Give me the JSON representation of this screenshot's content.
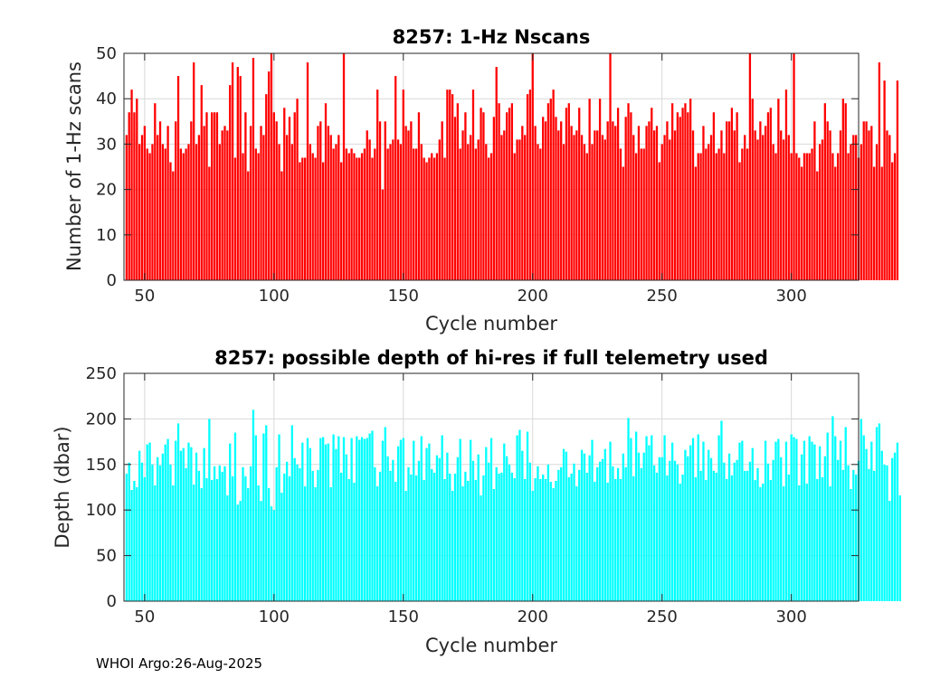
{
  "chart_data": [
    {
      "type": "bar",
      "title": "8257: 1-Hz Nscans",
      "xlabel": "Cycle number",
      "ylabel": "Number of 1-Hz scans",
      "xlim": [
        42,
        326
      ],
      "ylim": [
        0,
        50
      ],
      "xticks": [
        50,
        100,
        150,
        200,
        250,
        300
      ],
      "yticks": [
        0,
        10,
        20,
        30,
        40,
        50
      ],
      "grid": true,
      "bar_color": "#ff0000",
      "x_start": 43,
      "values": [
        32,
        37,
        42,
        37,
        40,
        30,
        32,
        34,
        29,
        28,
        30,
        39,
        32,
        35,
        30,
        29,
        34,
        26,
        24,
        35,
        45,
        29,
        28,
        29,
        30,
        35,
        48,
        30,
        32,
        43,
        34,
        37,
        25,
        37,
        37,
        37,
        30,
        33,
        34,
        33,
        43,
        48,
        27,
        47,
        45,
        28,
        37,
        24,
        34,
        49,
        29,
        28,
        34,
        32,
        41,
        46,
        50,
        37,
        35,
        30,
        24,
        38,
        32,
        36,
        30,
        37,
        40,
        26,
        27,
        27,
        48,
        30,
        28,
        27,
        34,
        35,
        26,
        39,
        34,
        32,
        29,
        30,
        32,
        26,
        50,
        29,
        28,
        29,
        28,
        27,
        27,
        28,
        29,
        33,
        31,
        27,
        29,
        42,
        35,
        20,
        35,
        29,
        30,
        31,
        45,
        31,
        30,
        42,
        34,
        33,
        35,
        29,
        29,
        37,
        30,
        27,
        26,
        27,
        28,
        27,
        28,
        31,
        35,
        27,
        42,
        42,
        41,
        36,
        39,
        29,
        33,
        37,
        30,
        32,
        42,
        29,
        31,
        38,
        37,
        30,
        27,
        28,
        36,
        47,
        39,
        32,
        33,
        37,
        38,
        39,
        28,
        31,
        31,
        34,
        32,
        41,
        42,
        50,
        34,
        30,
        29,
        36,
        35,
        39,
        40,
        42,
        36,
        33,
        35,
        30,
        38,
        39,
        34,
        32,
        33,
        38,
        32,
        30,
        28,
        40,
        30,
        33,
        33,
        40,
        32,
        31,
        35,
        50,
        35,
        34,
        38,
        29,
        25,
        36,
        39,
        37,
        32,
        28,
        34,
        29,
        29,
        34,
        35,
        38,
        33,
        34,
        26,
        30,
        32,
        35,
        31,
        39,
        33,
        37,
        36,
        38,
        39,
        37,
        40,
        33,
        25,
        28,
        28,
        34,
        29,
        30,
        32,
        37,
        28,
        29,
        33,
        28,
        35,
        35,
        38,
        33,
        37,
        26,
        29,
        32,
        29,
        50,
        40,
        33,
        31,
        35,
        32,
        34,
        37,
        38,
        30,
        28,
        40,
        33,
        31,
        42,
        32,
        28,
        50,
        28,
        27,
        25,
        28,
        28,
        28,
        29,
        35,
        24,
        30,
        31,
        39,
        35,
        33,
        28,
        25,
        28,
        33,
        40,
        39,
        28,
        30,
        32,
        32,
        27,
        30,
        35,
        35,
        33,
        34,
        25,
        30,
        48,
        25,
        44,
        33,
        32,
        26,
        28,
        44
      ]
    },
    {
      "type": "bar",
      "title": "8257: possible depth of hi-res if full telemetry used",
      "xlabel": "Cycle number",
      "ylabel": "Depth (dbar)",
      "xlim": [
        42,
        326
      ],
      "ylim": [
        0,
        250
      ],
      "xticks": [
        50,
        100,
        150,
        200,
        250,
        300
      ],
      "yticks": [
        0,
        50,
        100,
        150,
        200,
        250
      ],
      "grid": true,
      "bar_color": "#00ffff",
      "x_start": 43,
      "values": [
        140,
        152,
        122,
        132,
        125,
        165,
        152,
        136,
        172,
        174,
        150,
        127,
        158,
        149,
        162,
        172,
        178,
        150,
        127,
        176,
        195,
        165,
        168,
        146,
        174,
        169,
        128,
        163,
        143,
        124,
        168,
        135,
        200,
        133,
        148,
        134,
        149,
        142,
        148,
        116,
        173,
        137,
        185,
        106,
        110,
        147,
        137,
        124,
        148,
        210,
        182,
        127,
        110,
        184,
        193,
        124,
        104,
        100,
        147,
        183,
        119,
        140,
        153,
        137,
        193,
        157,
        150,
        146,
        174,
        126,
        179,
        168,
        143,
        125,
        144,
        179,
        180,
        172,
        173,
        125,
        183,
        167,
        181,
        141,
        180,
        161,
        134,
        179,
        130,
        181,
        177,
        180,
        178,
        179,
        184,
        187,
        147,
        126,
        142,
        176,
        191,
        159,
        143,
        155,
        131,
        170,
        177,
        179,
        121,
        147,
        139,
        176,
        138,
        154,
        181,
        133,
        168,
        173,
        145,
        141,
        160,
        157,
        182,
        134,
        163,
        140,
        121,
        140,
        158,
        178,
        126,
        142,
        132,
        177,
        154,
        133,
        161,
        116,
        138,
        169,
        152,
        179,
        123,
        147,
        140,
        141,
        173,
        159,
        150,
        141,
        135,
        182,
        188,
        165,
        134,
        186,
        152,
        121,
        135,
        148,
        134,
        139,
        134,
        150,
        131,
        124,
        132,
        144,
        147,
        167,
        164,
        136,
        140,
        151,
        126,
        144,
        166,
        162,
        141,
        160,
        177,
        131,
        147,
        153,
        156,
        167,
        130,
        175,
        148,
        134,
        146,
        134,
        162,
        147,
        201,
        179,
        137,
        186,
        163,
        146,
        163,
        181,
        171,
        182,
        149,
        141,
        158,
        158,
        182,
        138,
        154,
        174,
        154,
        150,
        129,
        139,
        166,
        159,
        171,
        179,
        136,
        183,
        143,
        175,
        133,
        166,
        157,
        143,
        141,
        182,
        198,
        152,
        134,
        162,
        138,
        152,
        155,
        174,
        176,
        143,
        143,
        153,
        168,
        133,
        146,
        125,
        129,
        176,
        151,
        133,
        155,
        175,
        178,
        158,
        126,
        175,
        139,
        183,
        180,
        178,
        127,
        161,
        176,
        129,
        181,
        175,
        172,
        134,
        170,
        136,
        159,
        185,
        126,
        203,
        181,
        155,
        176,
        144,
        191,
        149,
        123,
        144,
        139,
        154,
        200,
        182,
        167,
        145,
        175,
        143,
        191,
        195,
        165,
        150,
        149,
        110,
        157,
        163,
        174,
        116
      ]
    }
  ],
  "footer": {
    "text": "WHOI Argo:26-Aug-2025"
  },
  "colors": {
    "grid": "#d9d9d9",
    "axis": "#262626",
    "background": "#ffffff"
  }
}
